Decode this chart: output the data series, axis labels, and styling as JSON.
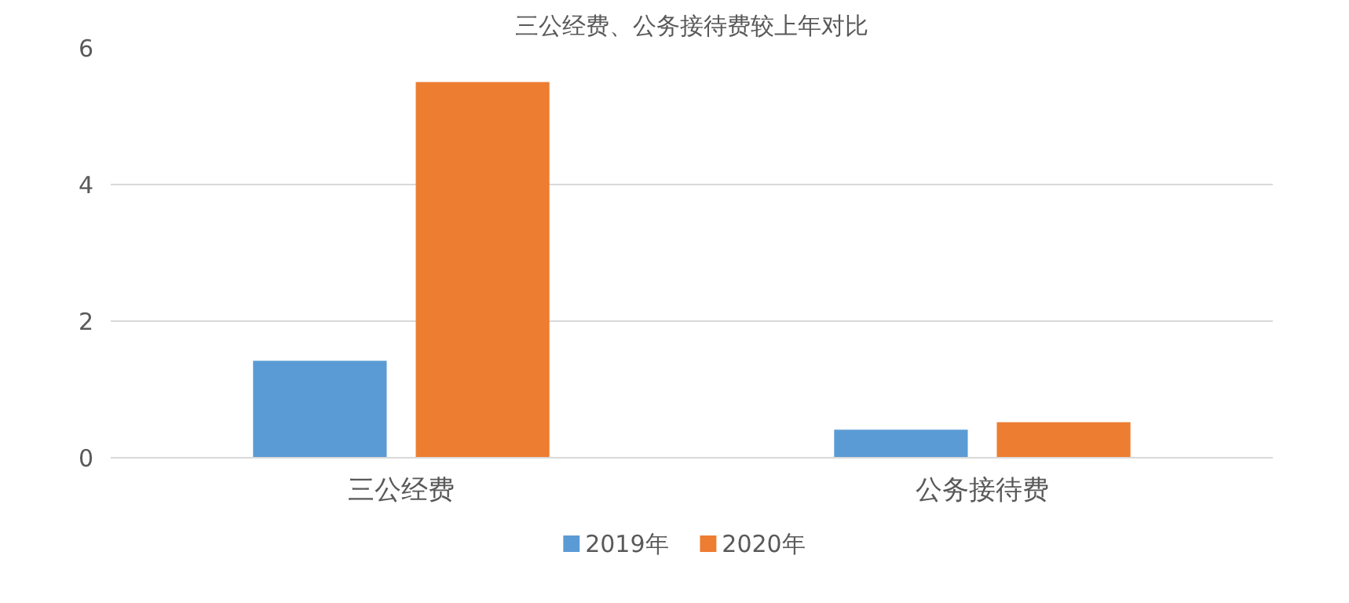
{
  "chart_data": {
    "type": "bar",
    "title": "三公经费、公务接待费较上年对比",
    "categories": [
      "三公经费",
      "公务接待费"
    ],
    "series": [
      {
        "name": "2019年",
        "color": "#5b9bd5",
        "values": [
          1.42,
          0.41
        ]
      },
      {
        "name": "2020年",
        "color": "#ed7d31",
        "values": [
          5.5,
          0.52
        ]
      }
    ],
    "ylim": [
      0,
      6
    ],
    "yticks": [
      0,
      2,
      4,
      6
    ],
    "grid": "y",
    "legend": "bottom"
  }
}
